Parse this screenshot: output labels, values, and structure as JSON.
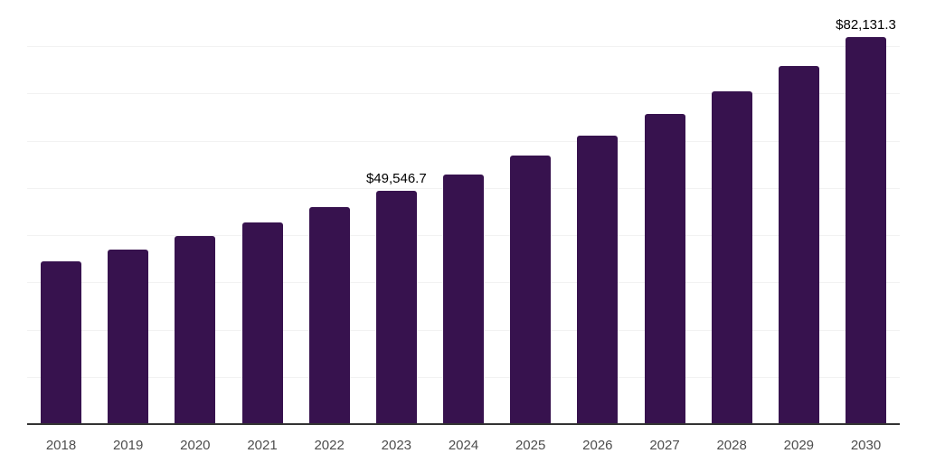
{
  "chart_data": {
    "type": "bar",
    "title": "",
    "xlabel": "",
    "ylabel": "",
    "x": [
      "2018",
      "2019",
      "2020",
      "2021",
      "2022",
      "2023",
      "2024",
      "2025",
      "2026",
      "2027",
      "2028",
      "2029",
      "2030"
    ],
    "values": [
      34600,
      37150,
      40000,
      42950,
      46100,
      49546.7,
      53100,
      57000,
      61200,
      65850,
      70650,
      76050,
      82131.3
    ],
    "value_labels": {
      "2023": "$49,546.7",
      "2030": "$82,131.3"
    },
    "ylim": [
      0,
      90000
    ],
    "gridline_step": 10000,
    "grid": true,
    "legend": false,
    "y_axis_labels_visible": false,
    "colors": {
      "bar": "#37124E",
      "gridline": "#f2f2f2",
      "axis_line": "#333333",
      "tick_label": "#4d4d4d",
      "value_label": "#000000",
      "background": "#ffffff"
    }
  }
}
